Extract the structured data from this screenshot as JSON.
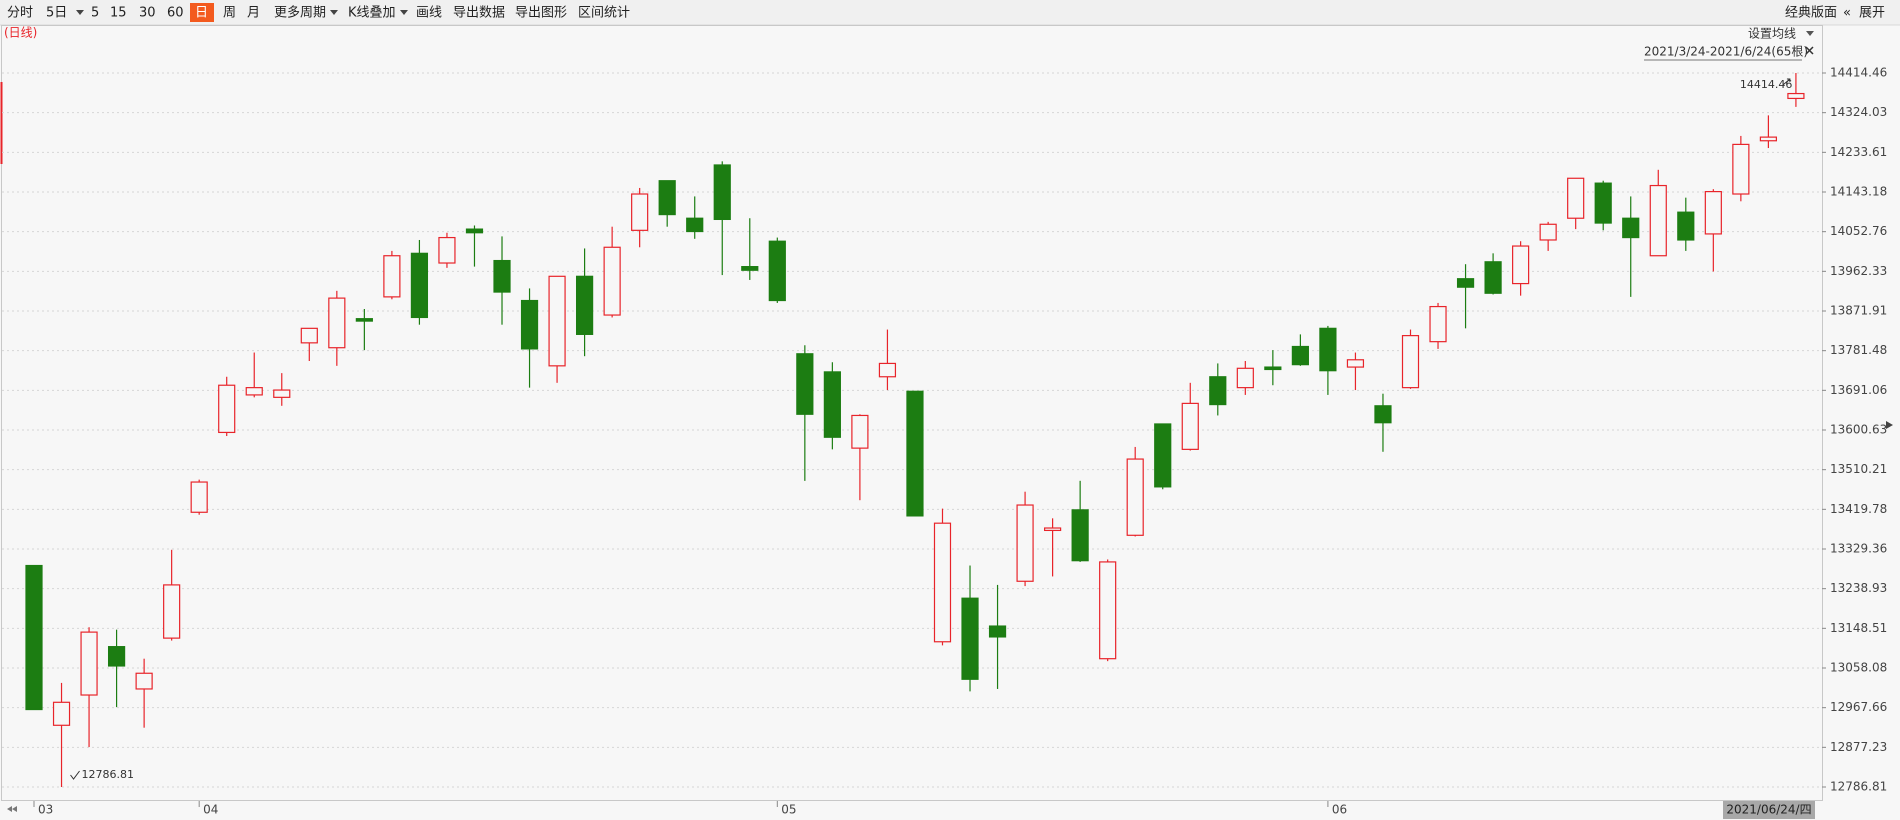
{
  "toolbar": [
    "分时",
    "5日",
    "5",
    "15",
    "30",
    "60",
    "日",
    "周",
    "月",
    "更多周期",
    "K线叠加",
    "画线",
    "导出数据",
    "导出图形",
    "区间统计"
  ],
  "toolbar_active": 6,
  "toolbar_right": [
    "经典版面",
    "展开"
  ],
  "chart_data": {
    "type": "candlestick",
    "period_label": "(日线)",
    "ma_setting": "设置均线",
    "range_label": "2021/3/24-2021/6/24(65根)",
    "cursor_label": "2021/06/24/四",
    "up_color": "#e8242a",
    "down_color": "#1c7d12",
    "grid": true,
    "ylim": [
      12786.81,
      14414.46
    ],
    "yticks": [
      14414.46,
      14324.03,
      14233.61,
      14143.18,
      14052.76,
      13962.33,
      13871.91,
      13781.48,
      13691.06,
      13600.63,
      13510.21,
      13419.78,
      13329.36,
      13238.93,
      13148.51,
      13058.08,
      12967.66,
      12877.23,
      12786.81
    ],
    "max_point": 64,
    "min_point": 1,
    "categories": [
      "03",
      null,
      null,
      null,
      null,
      null,
      "04",
      null,
      null,
      null,
      null,
      null,
      null,
      null,
      null,
      null,
      null,
      null,
      null,
      null,
      null,
      null,
      null,
      null,
      null,
      null,
      null,
      "05",
      null,
      null,
      null,
      null,
      null,
      null,
      null,
      null,
      null,
      null,
      null,
      null,
      null,
      null,
      null,
      null,
      null,
      null,
      null,
      "06",
      null,
      null,
      null,
      null,
      null,
      null,
      null,
      null,
      null,
      null,
      null,
      null,
      null,
      null,
      null,
      null,
      null
    ],
    "open": [
      13291.7,
      12927.5,
      12996.5,
      13106.8,
      13010.3,
      13126.2,
      13413.1,
      13595.1,
      13680.6,
      13675.1,
      13799.3,
      13788.2,
      13854.4,
      13904.1,
      14003.4,
      13981.3,
      14058.6,
      13986.9,
      13895.8,
      13746.9,
      13951.0,
      13862.7,
      14055.8,
      14168.9,
      14083.4,
      14204.8,
      13973.1,
      14031.0,
      13774.4,
      13733.1,
      13559.3,
      13722.0,
      13688.9,
      13117.9,
      13217.2,
      13153.7,
      13255.8,
      13371.7,
      13418.6,
      13079.3,
      13360.6,
      13614.4,
      13556.5,
      13722.0,
      13697.2,
      13744.1,
      13791.0,
      13832.4,
      13744.1,
      13655.8,
      13697.2,
      13802.0,
      13945.5,
      13984.1,
      13934.4,
      14033.8,
      14083.4,
      14163.4,
      14083.4,
      13997.9,
      14097.2,
      14047.6,
      14138.6,
      14260.0,
      14356.5
    ],
    "high": [
      13291.7,
      13024.1,
      13151.0,
      13145.5,
      13079.3,
      13327.5,
      13487.5,
      13722.0,
      13777.2,
      13730.3,
      13832.4,
      13917.9,
      13876.5,
      14008.9,
      14033.8,
      14050.3,
      14066.9,
      14042.0,
      13923.4,
      13951.0,
      14014.5,
      14064.1,
      14152.4,
      14168.9,
      14133.1,
      14213.1,
      14083.4,
      14039.3,
      13793.8,
      13755.1,
      13636.5,
      13829.6,
      13688.9,
      13421.3,
      13291.7,
      13247.5,
      13460.0,
      13399.3,
      13484.8,
      13305.5,
      13562.0,
      13614.4,
      13708.2,
      13752.4,
      13757.9,
      13782.7,
      13818.6,
      13837.9,
      13777.2,
      13683.4,
      13829.6,
      13890.3,
      13978.6,
      14003.4,
      14031.0,
      14075.1,
      14174.5,
      14168.9,
      14133.1,
      14193.8,
      14130.3,
      14149.6,
      14271.0,
      14317.9,
      14414.46
    ],
    "low": [
      12963.4,
      12786.81,
      12877.9,
      12968.9,
      12922.0,
      13120.6,
      13407.5,
      13586.9,
      13675.1,
      13655.8,
      13757.9,
      13746.9,
      13782.7,
      13898.6,
      13840.7,
      13970.3,
      13973.1,
      13840.7,
      13697.2,
      13708.2,
      13768.9,
      13857.2,
      14017.2,
      14064.1,
      14036.5,
      13953.8,
      13942.7,
      13890.3,
      13484.8,
      13556.5,
      13440.6,
      13691.7,
      13404.8,
      13109.6,
      13004.8,
      13010.3,
      13244.8,
      13266.8,
      13299.9,
      13073.7,
      13357.9,
      13465.5,
      13553.7,
      13633.8,
      13680.6,
      13702.7,
      13746.9,
      13680.6,
      13691.7,
      13551.0,
      13694.4,
      13785.5,
      13832.4,
      13909.6,
      13906.9,
      14008.9,
      14058.6,
      14055.8,
      13904.1,
      13997.9,
      14008.9,
      13962.0,
      14122.0,
      14243.4,
      14337.2
    ],
    "close": [
      12963.4,
      12979.9,
      13139.9,
      13062.7,
      13046.1,
      13247.5,
      13482.0,
      13702.7,
      13697.2,
      13691.7,
      13832.4,
      13901.3,
      13848.9,
      13997.9,
      13857.2,
      14039.3,
      14050.3,
      13915.1,
      13785.5,
      13951.0,
      13818.6,
      14017.2,
      14138.6,
      14091.7,
      14053.1,
      14080.7,
      13964.8,
      13895.8,
      13636.5,
      13584.1,
      13633.8,
      13752.4,
      13404.8,
      13388.2,
      13032.4,
      13128.9,
      13429.6,
      13377.2,
      13302.7,
      13299.9,
      13534.4,
      13471.0,
      13661.3,
      13658.6,
      13741.3,
      13738.6,
      13749.6,
      13735.8,
      13760.7,
      13617.2,
      13815.8,
      13882.0,
      13926.2,
      13912.4,
      14020.0,
      14069.6,
      14174.5,
      14072.4,
      14039.3,
      14157.9,
      14033.8,
      14144.1,
      14251.7,
      14268.3,
      14367.6
    ]
  }
}
